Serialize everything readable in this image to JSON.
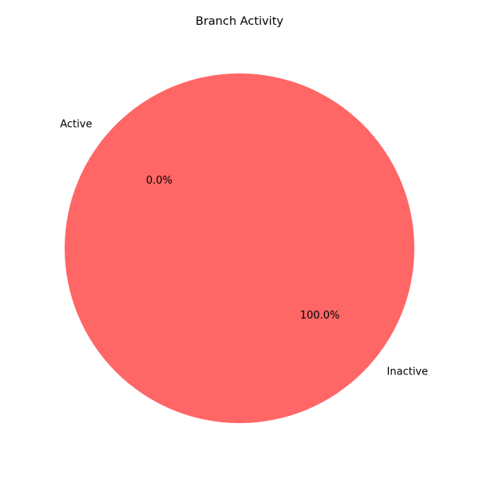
{
  "chart_data": {
    "type": "pie",
    "title": "Branch Activity",
    "slices": [
      {
        "label": "Active",
        "value": 0,
        "percent_label": "0.0%",
        "color": "#4ecdc4"
      },
      {
        "label": "Inactive",
        "value": 100,
        "percent_label": "100.0%",
        "color": "#ff6666"
      }
    ],
    "start_angle_deg": 140,
    "direction": "counterclockwise",
    "legend": false
  }
}
